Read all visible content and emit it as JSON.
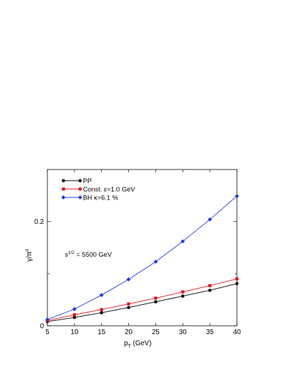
{
  "chart_data": {
    "type": "line",
    "xlabel": "p",
    "xlabel_sub": "T",
    "xlabel_unit": " (GeV)",
    "ylabel": "γ/π",
    "ylabel_sup": "0",
    "xlim": [
      5,
      40
    ],
    "ylim": [
      0,
      0.3
    ],
    "x_ticks": [
      5,
      10,
      15,
      20,
      25,
      30,
      35,
      40
    ],
    "x_tick_labels": [
      "5",
      "10",
      "15",
      "20",
      "25",
      "30",
      "35",
      "40"
    ],
    "y_ticks": [
      0,
      0.2
    ],
    "y_tick_labels": [
      "0",
      "0.2"
    ],
    "y_minor_ticks": [
      0.1
    ],
    "grid": false,
    "legend_position": "top-left",
    "annotation": {
      "base": "s",
      "sup": "1/2",
      "rest": " = 5500 GeV"
    },
    "series": [
      {
        "name": "PP",
        "color": "#000000",
        "marker": "circle",
        "x": [
          5,
          10,
          15,
          20,
          25,
          30,
          35,
          40
        ],
        "values": [
          0.008,
          0.016,
          0.025,
          0.035,
          0.046,
          0.057,
          0.068,
          0.081
        ]
      },
      {
        "name": "Const. ε=1.0 GeV",
        "color": "#e8151b",
        "marker": "square",
        "x": [
          5,
          10,
          15,
          20,
          25,
          30,
          35,
          40
        ],
        "values": [
          0.01,
          0.021,
          0.031,
          0.042,
          0.053,
          0.065,
          0.077,
          0.09
        ]
      },
      {
        "name": "BH κ=6.1 %",
        "color": "#1f3be6",
        "marker": "diamond",
        "x": [
          5,
          10,
          15,
          20,
          25,
          30,
          35,
          40
        ],
        "values": [
          0.012,
          0.032,
          0.059,
          0.089,
          0.123,
          0.162,
          0.204,
          0.249
        ]
      }
    ]
  }
}
